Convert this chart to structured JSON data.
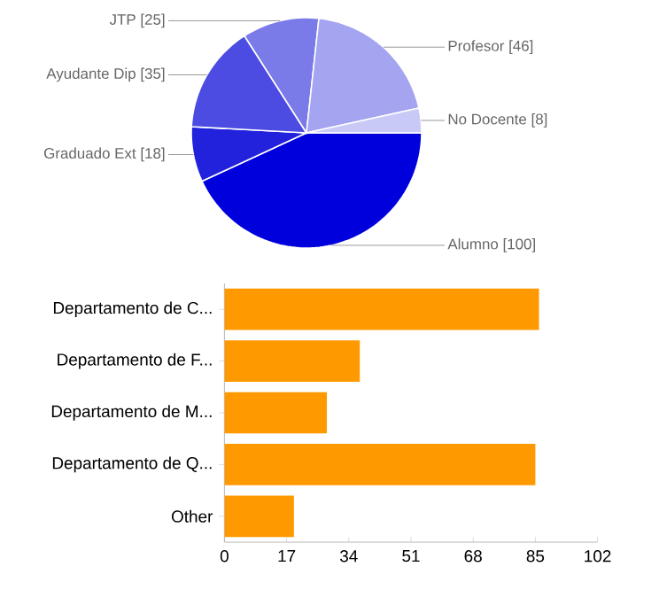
{
  "chart_data": [
    {
      "type": "pie",
      "categories": [
        "Alumno",
        "Graduado Ext",
        "Ayudante Dip",
        "JTP",
        "Profesor",
        "No Docente"
      ],
      "values": [
        100,
        18,
        35,
        25,
        46,
        8
      ],
      "colors": [
        "#0000dd",
        "#2222dd",
        "#4c4ce2",
        "#7a7ae8",
        "#a4a4f0",
        "#c9c9f8"
      ],
      "value_labels": [
        "[100]",
        "[18]",
        "[35]",
        "[25]",
        "[46]",
        "[8]"
      ]
    },
    {
      "type": "bar",
      "orientation": "horizontal",
      "categories": [
        "Departamento de C...",
        "Departamento de F...",
        "Departamento de M...",
        "Departamento de Q...",
        "Other"
      ],
      "values": [
        86,
        37,
        28,
        85,
        19
      ],
      "color": "#ff9900",
      "xlim": [
        0,
        102
      ],
      "xticks": [
        0,
        17,
        34,
        51,
        68,
        85,
        102
      ]
    }
  ]
}
